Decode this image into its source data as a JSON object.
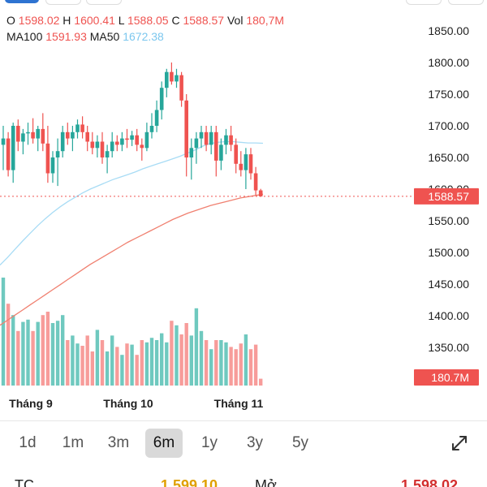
{
  "ohlc": {
    "o_label": "O",
    "o_value": "1598.02",
    "h_label": "H",
    "h_value": "1600.41",
    "l_label": "L",
    "l_value": "1588.05",
    "c_label": "C",
    "c_value": "1588.57",
    "vol_label": "Vol",
    "vol_value": "180,7M"
  },
  "ma": {
    "ma100_label": "MA100",
    "ma100_value": "1591.93",
    "ma50_label": "MA50",
    "ma50_value": "1672.38"
  },
  "chart_data": {
    "type": "candlestick",
    "y_ticks": [
      "1850.00",
      "1800.00",
      "1750.00",
      "1700.00",
      "1650.00",
      "1600.00",
      "1550.00",
      "1500.00",
      "1450.00",
      "1400.00",
      "1350.00"
    ],
    "ylim": [
      1330,
      1862
    ],
    "x_tick_labels": [
      "Tháng 9",
      "Tháng 10",
      "Tháng 11"
    ],
    "last_price_label": "1588.57",
    "last_price": 1588.57,
    "volume_label": "180.7M",
    "colors": {
      "up": "#26a69a",
      "down": "#ef5350",
      "up_vol": "#6fc9bf",
      "down_vol": "#f79c9a",
      "ma100": "#f08070",
      "ma50": "#a8dcf5"
    },
    "candles": [
      [
        1670,
        1700,
        1630,
        1680
      ],
      [
        1680,
        1690,
        1620,
        1630
      ],
      [
        1630,
        1705,
        1610,
        1700
      ],
      [
        1700,
        1710,
        1660,
        1675
      ],
      [
        1675,
        1695,
        1655,
        1688
      ],
      [
        1688,
        1705,
        1670,
        1690
      ],
      [
        1690,
        1712,
        1672,
        1680
      ],
      [
        1680,
        1700,
        1660,
        1695
      ],
      [
        1695,
        1720,
        1660,
        1672
      ],
      [
        1672,
        1700,
        1610,
        1625
      ],
      [
        1625,
        1660,
        1610,
        1650
      ],
      [
        1650,
        1680,
        1605,
        1660
      ],
      [
        1660,
        1700,
        1650,
        1690
      ],
      [
        1690,
        1705,
        1670,
        1680
      ],
      [
        1680,
        1700,
        1660,
        1690
      ],
      [
        1690,
        1710,
        1680,
        1702
      ],
      [
        1702,
        1715,
        1680,
        1690
      ],
      [
        1690,
        1700,
        1660,
        1675
      ],
      [
        1675,
        1690,
        1655,
        1665
      ],
      [
        1665,
        1685,
        1650,
        1675
      ],
      [
        1675,
        1690,
        1640,
        1650
      ],
      [
        1650,
        1670,
        1625,
        1660
      ],
      [
        1660,
        1690,
        1650,
        1675
      ],
      [
        1675,
        1685,
        1660,
        1670
      ],
      [
        1670,
        1690,
        1660,
        1680
      ],
      [
        1680,
        1695,
        1665,
        1678
      ],
      [
        1678,
        1692,
        1668,
        1685
      ],
      [
        1685,
        1695,
        1660,
        1670
      ],
      [
        1670,
        1680,
        1645,
        1665
      ],
      [
        1665,
        1705,
        1660,
        1690
      ],
      [
        1690,
        1720,
        1680,
        1700
      ],
      [
        1700,
        1740,
        1690,
        1725
      ],
      [
        1725,
        1770,
        1710,
        1760
      ],
      [
        1760,
        1790,
        1745,
        1785
      ],
      [
        1785,
        1800,
        1765,
        1770
      ],
      [
        1770,
        1790,
        1760,
        1780
      ],
      [
        1780,
        1785,
        1730,
        1740
      ],
      [
        1740,
        1750,
        1620,
        1650
      ],
      [
        1650,
        1680,
        1615,
        1665
      ],
      [
        1665,
        1690,
        1640,
        1680
      ],
      [
        1680,
        1700,
        1665,
        1690
      ],
      [
        1690,
        1700,
        1660,
        1670
      ],
      [
        1670,
        1700,
        1655,
        1690
      ],
      [
        1690,
        1700,
        1620,
        1645
      ],
      [
        1645,
        1680,
        1630,
        1670
      ],
      [
        1670,
        1695,
        1655,
        1685
      ],
      [
        1685,
        1700,
        1660,
        1670
      ],
      [
        1670,
        1680,
        1625,
        1640
      ],
      [
        1640,
        1660,
        1620,
        1630
      ],
      [
        1630,
        1665,
        1600,
        1655
      ],
      [
        1655,
        1665,
        1615,
        1625
      ],
      [
        1625,
        1635,
        1590,
        1598
      ],
      [
        1598.02,
        1600.41,
        1588.05,
        1588.57
      ]
    ],
    "volumes": [
      0.95,
      0.72,
      0.62,
      0.48,
      0.56,
      0.58,
      0.48,
      0.56,
      0.62,
      0.65,
      0.55,
      0.57,
      0.62,
      0.4,
      0.44,
      0.37,
      0.35,
      0.44,
      0.3,
      0.49,
      0.4,
      0.3,
      0.44,
      0.34,
      0.27,
      0.37,
      0.36,
      0.27,
      0.4,
      0.38,
      0.42,
      0.4,
      0.46,
      0.38,
      0.57,
      0.53,
      0.45,
      0.55,
      0.44,
      0.68,
      0.48,
      0.4,
      0.32,
      0.4,
      0.4,
      0.38,
      0.34,
      0.32,
      0.37,
      0.45,
      0.32,
      0.36,
      0.06
    ],
    "ma100": [
      1385,
      1393,
      1401,
      1409,
      1417,
      1425,
      1433,
      1441,
      1449,
      1457,
      1465,
      1473,
      1481,
      1488,
      1495,
      1502,
      1509,
      1516,
      1522,
      1528,
      1534,
      1540,
      1546,
      1552,
      1557,
      1562,
      1566,
      1570,
      1574,
      1577,
      1580,
      1583,
      1586,
      1588,
      1590,
      1591.93
    ],
    "ma50": [
      1480,
      1492,
      1505,
      1518,
      1530,
      1542,
      1553,
      1563,
      1572,
      1580,
      1587,
      1594,
      1600,
      1605,
      1610,
      1615,
      1619,
      1623,
      1627,
      1632,
      1636,
      1640,
      1644,
      1648,
      1652,
      1657,
      1662,
      1668,
      1672,
      1674,
      1675,
      1675,
      1674,
      1673,
      1673,
      1672.38
    ]
  },
  "ranges": {
    "items": [
      {
        "label": "1d",
        "active": false
      },
      {
        "label": "1m",
        "active": false
      },
      {
        "label": "3m",
        "active": false
      },
      {
        "label": "6m",
        "active": true
      },
      {
        "label": "1y",
        "active": false
      },
      {
        "label": "3y",
        "active": false
      },
      {
        "label": "5y",
        "active": false
      }
    ]
  },
  "icons": {
    "expand": "expand-icon"
  },
  "bottom": {
    "left_label": "TC",
    "center_value": "1,599.10",
    "center_color": "#e0a000",
    "right_label": "Mở",
    "right_value": "1,598.02",
    "right_color": "#d32f2f"
  }
}
